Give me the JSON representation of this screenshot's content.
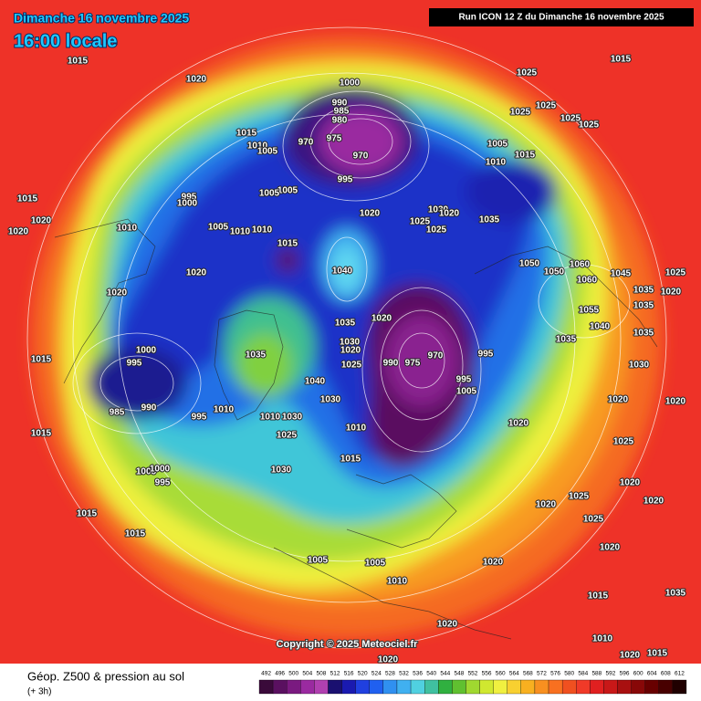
{
  "header": {
    "date": "Dimanche 16 novembre 2025",
    "time": "16:00 locale",
    "run": "Run ICON 12 Z du Dimanche 16 novembre 2025"
  },
  "map": {
    "pressure_labels": [
      1015,
      1020,
      1000,
      990,
      985,
      980,
      970,
      975,
      970,
      995,
      1015,
      1010,
      1005,
      1025,
      1015,
      1025,
      1025,
      1025,
      1025,
      1005,
      1010,
      1015,
      1015,
      1020,
      1020,
      995,
      1000,
      1010,
      1005,
      1010,
      1010,
      1005,
      1005,
      1020,
      1015,
      1025,
      1030,
      1020,
      1025,
      1035,
      1040,
      1020,
      1020,
      1050,
      1050,
      1060,
      1060,
      1045,
      1025,
      1020,
      1035,
      1055,
      1040,
      1035,
      1035,
      1035,
      1020,
      1035,
      1030,
      1035,
      1000,
      995,
      1015,
      970,
      975,
      990,
      995,
      995,
      1005,
      1040,
      1030,
      1025,
      990,
      985,
      1010,
      995,
      1010,
      1030,
      1025,
      1010,
      1020,
      1025,
      1015,
      1030,
      1005,
      1000,
      995,
      1015,
      1015,
      1015,
      1005,
      1005,
      1010,
      1020,
      1020,
      1025,
      1025,
      1020,
      1020,
      1020,
      1020,
      1020,
      1030,
      1035,
      1015,
      1020,
      1020,
      1015,
      1010,
      1020,
      1020
    ]
  },
  "footer": {
    "copyright": "Copyright © 2025 Meteociel.fr",
    "title": "Géop. Z500 & pression au sol",
    "subtitle": "(+ 3h)"
  },
  "scale": {
    "ticks": [
      492,
      496,
      500,
      504,
      508,
      512,
      516,
      520,
      524,
      528,
      532,
      536,
      540,
      544,
      548,
      552,
      556,
      560,
      564,
      568,
      572,
      576,
      580,
      584,
      588,
      592,
      596,
      600,
      604,
      608,
      612
    ],
    "colors": [
      "#3a0a3a",
      "#5a1060",
      "#7a1a80",
      "#9a2aa0",
      "#b040b0",
      "#1a1070",
      "#1a1ab0",
      "#2040e0",
      "#2060f0",
      "#3090f0",
      "#40b0f0",
      "#50d0e0",
      "#40c0a0",
      "#30b040",
      "#60c030",
      "#a0d830",
      "#d0e830",
      "#f0f040",
      "#f8d030",
      "#f8b020",
      "#f89020",
      "#f87020",
      "#f05020",
      "#f03a28",
      "#e02020",
      "#c81818",
      "#a81010",
      "#880808",
      "#680000",
      "#480000",
      "#200000"
    ]
  }
}
